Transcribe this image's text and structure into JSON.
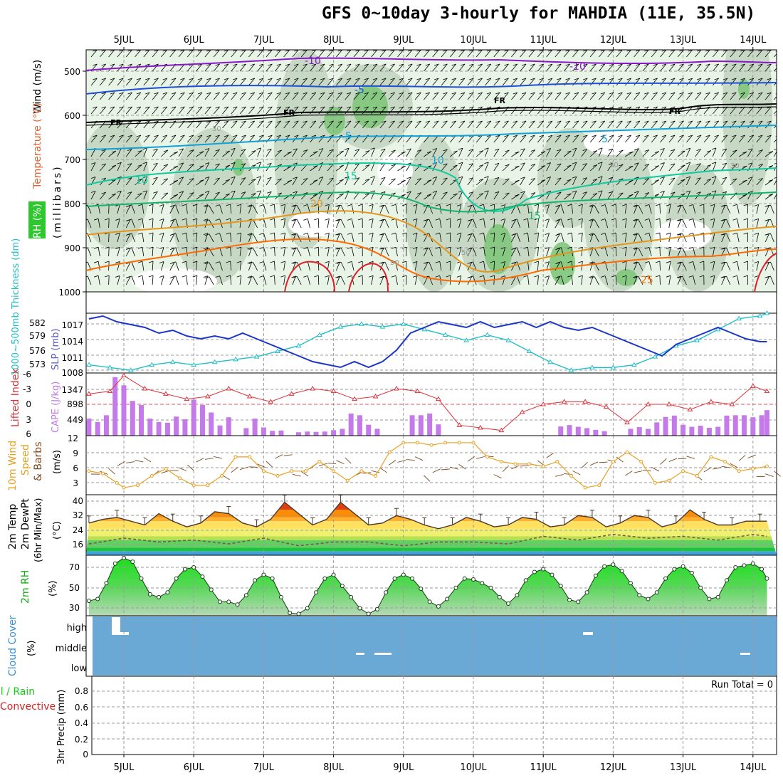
{
  "title": "GFS 0~10day 3-hourly for MAHDIA (11E, 35.5N)",
  "colors": {
    "rh_green_light": "#e8f4e6",
    "rh_green_mid": "#c3d6c1",
    "rh_green_dark": "#7fc77b",
    "temp_purple": "#8a18c8",
    "temp_blue": "#1f4fd8",
    "temp_freezing": "#000000",
    "temp_lightblue": "#12a0d8",
    "temp_teal": "#13c8a0",
    "temp_green": "#17b26a",
    "temp_orange": "#e4951b",
    "temp_darkorange": "#ff6a00",
    "temp_red": "#e0202a",
    "slp_line": "#1b36c8",
    "thickness_line": "#1fc0c8",
    "lifted_index": "#e0303a",
    "cape_bars": "#c47ae8",
    "wind_speed": "#e8a020",
    "wind_barbs": "#7a4a20",
    "rh2m_fill": "#18e018",
    "cloud_fill": "#6aa8d6",
    "precip_total": "#10d010",
    "precip_convective": "#e02020"
  },
  "x_ticks": [
    "5JUL",
    "6JUL",
    "7JUL",
    "8JUL",
    "9JUL",
    "10JUL",
    "11JUL",
    "12JUL",
    "13JUL",
    "14JUL"
  ],
  "panels": {
    "upper_air": {
      "labels": {
        "wind": "Wind (m/s)",
        "temperature": "Temperature (°C)",
        "rh": "RH (%)",
        "pressure": "(millibars)"
      },
      "y_ticks": [
        "500",
        "600",
        "700",
        "800",
        "900",
        "1000"
      ],
      "contour_labels": [
        "-10",
        "-10",
        "-5",
        "FR",
        "FR",
        "FR",
        "FR",
        "-5",
        "5",
        "10",
        "10",
        "15",
        "15",
        "20",
        "25",
        "30",
        "30",
        "30",
        "50",
        "50",
        "50"
      ]
    },
    "slp": {
      "labels": {
        "thickness": "1000~500mb Thickness (dm)",
        "slp": "SLP (mb)"
      },
      "left_ticks": [
        "582",
        "579",
        "576",
        "573"
      ],
      "right_ticks": [
        "1017",
        "1014",
        "1011",
        "1008"
      ]
    },
    "lifted": {
      "labels": {
        "lifted": "Lifted Index",
        "cape": "CAPE (J/kg)"
      },
      "left_ticks": [
        "-6",
        "-3",
        "0",
        "3",
        "6"
      ],
      "right_ticks": [
        "1347",
        "898",
        "449"
      ]
    },
    "wind10": {
      "labels": {
        "line1": "10m Wind",
        "line2": "Speed",
        "line3": "& Barbs",
        "unit": "(m/s)"
      },
      "y_ticks": [
        "12",
        "9",
        "6",
        "3"
      ]
    },
    "temp2m": {
      "labels": {
        "line1": "2m Temp",
        "line2": "2m DewPt",
        "line3": "(6hr Min/Max)",
        "unit": "(°C)"
      },
      "y_ticks": [
        "40",
        "32",
        "24",
        "16"
      ]
    },
    "rh2m": {
      "labels": {
        "name": "2m RH",
        "unit": "(%)"
      },
      "y_ticks": [
        "70",
        "50",
        "30"
      ]
    },
    "cloud": {
      "labels": {
        "name": "Cloud Cover",
        "unit": "(%)"
      },
      "levels": [
        "high",
        "middle",
        "low"
      ]
    },
    "precip": {
      "labels": {
        "total": "Total / Rain",
        "convective": "Convective",
        "axis": "3hr Precip (mm)"
      },
      "y_ticks": [
        "0.8",
        "0.6",
        "0.4",
        "0.2",
        "0"
      ],
      "run_total": "Run Total = 0"
    }
  },
  "chart_data": [
    {
      "type": "line",
      "name": "slp_thickness",
      "x_unit": "days since 5JUL 00Z",
      "slp_mb": {
        "ylim": [
          1008,
          1018.5
        ],
        "x": [
          -0.5,
          -0.3,
          -0.1,
          0.1,
          0.3,
          0.5,
          0.7,
          0.9,
          1.1,
          1.3,
          1.5,
          1.7,
          1.9,
          2.1,
          2.3,
          2.5,
          2.7,
          2.9,
          3.1,
          3.3,
          3.5,
          3.7,
          3.9,
          4.1,
          4.3,
          4.5,
          4.7,
          4.9,
          5.1,
          5.3,
          5.5,
          5.7,
          5.9,
          6.1,
          6.3,
          6.5,
          6.7,
          6.9,
          7.1,
          7.3,
          7.5,
          7.7,
          7.9,
          8.1,
          8.3,
          8.5,
          8.7,
          8.9,
          9.1,
          9.2
        ],
        "values": [
          1017.5,
          1018,
          1017,
          1016.5,
          1016,
          1015,
          1015.5,
          1014.5,
          1014,
          1014.5,
          1014,
          1015,
          1014,
          1013,
          1012,
          1011,
          1010,
          1009.5,
          1009,
          1010,
          1009,
          1010,
          1012,
          1015,
          1016,
          1017,
          1016.5,
          1016,
          1017,
          1016,
          1016.5,
          1017,
          1016,
          1017,
          1016,
          1015.5,
          1016,
          1015,
          1014,
          1013,
          1012,
          1011,
          1013,
          1014,
          1015,
          1016,
          1015,
          1014,
          1013.5,
          1013.5
        ]
      },
      "thickness_dm": {
        "ylim": [
          572,
          583
        ],
        "x": [
          -0.5,
          -0.2,
          0.1,
          0.4,
          0.7,
          1.0,
          1.3,
          1.6,
          1.9,
          2.2,
          2.5,
          2.8,
          3.1,
          3.4,
          3.7,
          4.0,
          4.3,
          4.6,
          4.9,
          5.2,
          5.5,
          5.8,
          6.1,
          6.4,
          6.7,
          7.0,
          7.3,
          7.6,
          7.9,
          8.2,
          8.5,
          8.8,
          9.1,
          9.2
        ],
        "values": [
          573.5,
          573,
          572.5,
          573.5,
          574,
          573.5,
          574,
          574.5,
          575,
          576,
          577,
          579,
          580.5,
          581,
          580.5,
          581,
          580,
          579,
          578,
          579,
          578,
          576,
          574,
          572.5,
          573,
          573,
          573.5,
          575,
          577,
          578,
          580,
          582,
          582.5,
          583
        ]
      }
    },
    {
      "type": "bar",
      "name": "cape_lifted_index",
      "x_unit": "days since 5JUL 00Z",
      "cape_jkg": {
        "ylim": [
          0,
          1800
        ],
        "x": [
          -0.5,
          -0.375,
          -0.25,
          -0.125,
          0.0,
          0.125,
          0.25,
          0.375,
          0.5,
          0.625,
          0.75,
          0.875,
          1.0,
          1.125,
          1.25,
          1.375,
          1.5,
          1.75,
          1.875,
          2.0,
          2.125,
          2.25,
          2.5,
          2.625,
          2.75,
          2.875,
          3.0,
          3.125,
          3.25,
          3.375,
          3.5,
          3.625,
          3.75,
          4.125,
          4.25,
          4.375,
          4.5,
          4.625,
          4.75,
          5.0,
          5.25,
          5.5,
          5.75,
          6.0,
          6.125,
          6.25,
          6.375,
          6.5,
          6.625,
          6.75,
          6.875,
          7.0,
          7.25,
          7.375,
          7.5,
          7.625,
          7.75,
          7.875,
          8.0,
          8.125,
          8.25,
          8.375,
          8.5,
          8.625,
          8.75,
          8.875,
          9.0,
          9.125,
          9.2
        ],
        "values": [
          500,
          400,
          600,
          1720,
          1480,
          1020,
          900,
          500,
          400,
          380,
          560,
          480,
          1060,
          900,
          680,
          300,
          540,
          220,
          500,
          240,
          140,
          150,
          100,
          120,
          110,
          120,
          160,
          200,
          650,
          600,
          320,
          200,
          0,
          600,
          600,
          650,
          330,
          0,
          0,
          0,
          0,
          0,
          0,
          0,
          0,
          270,
          310,
          260,
          220,
          170,
          130,
          0,
          200,
          250,
          200,
          390,
          550,
          590,
          320,
          260,
          290,
          230,
          260,
          590,
          600,
          600,
          540,
          600,
          750
        ]
      },
      "lifted_index": {
        "ylim": [
          6,
          -6
        ],
        "x": [
          -0.5,
          -0.2,
          0.0,
          0.3,
          0.6,
          0.9,
          1.2,
          1.5,
          1.8,
          2.1,
          2.4,
          2.7,
          3.0,
          3.3,
          3.6,
          3.9,
          4.2,
          4.5,
          4.8,
          5.1,
          5.4,
          5.7,
          6.0,
          6.3,
          6.6,
          6.9,
          7.2,
          7.5,
          7.8,
          8.1,
          8.4,
          8.7,
          9.0,
          9.2
        ],
        "values": [
          -2,
          -2.5,
          -5.5,
          -3,
          -2,
          -1,
          -1.5,
          -3,
          -1.5,
          -0.5,
          -2,
          -3,
          -2.5,
          -1,
          -1.5,
          -3,
          -2.5,
          -1,
          4,
          4.5,
          5,
          1.5,
          0,
          -0.5,
          -0.5,
          0.5,
          3.5,
          0,
          0,
          1,
          -0.5,
          0,
          -3.5,
          -2.5
        ]
      }
    },
    {
      "type": "line",
      "name": "wind10m_speed",
      "x_unit": "days since 5JUL 00Z",
      "ylim": [
        0,
        12.5
      ],
      "x": [
        -0.5,
        -0.3,
        -0.1,
        0.0,
        0.2,
        0.4,
        0.6,
        0.8,
        1.0,
        1.2,
        1.4,
        1.6,
        1.8,
        2.0,
        2.2,
        2.4,
        2.6,
        2.8,
        3.0,
        3.2,
        3.4,
        3.6,
        3.8,
        4.0,
        4.2,
        4.4,
        4.6,
        4.8,
        5.0,
        5.2,
        5.4,
        5.6,
        5.8,
        6.0,
        6.2,
        6.4,
        6.6,
        6.8,
        7.0,
        7.2,
        7.4,
        7.6,
        7.8,
        8.0,
        8.2,
        8.4,
        8.6,
        8.8,
        9.0,
        9.2
      ],
      "values": [
        5,
        4.5,
        2.5,
        1.5,
        2,
        4,
        5.5,
        3.5,
        2,
        2,
        4,
        8,
        8,
        5,
        4,
        5,
        5,
        7,
        5,
        3,
        5,
        4,
        9,
        11,
        11,
        10.5,
        11,
        11,
        11,
        8,
        7,
        6.5,
        6.5,
        6,
        7,
        4,
        1.5,
        2,
        7,
        9,
        7,
        2.5,
        3,
        5,
        4,
        8,
        7,
        5,
        5.5,
        6
      ]
    },
    {
      "type": "line",
      "name": "temp2m",
      "x_unit": "days since 5JUL 00Z",
      "ylim": [
        10,
        42
      ],
      "temperature": {
        "x": [
          -0.5,
          -0.3,
          -0.1,
          0.1,
          0.3,
          0.5,
          0.7,
          0.9,
          1.1,
          1.3,
          1.5,
          1.7,
          1.9,
          2.1,
          2.3,
          2.5,
          2.7,
          2.9,
          3.1,
          3.3,
          3.5,
          3.7,
          3.9,
          4.1,
          4.3,
          4.5,
          4.7,
          4.9,
          5.1,
          5.3,
          5.5,
          5.7,
          5.9,
          6.1,
          6.3,
          6.5,
          6.7,
          6.9,
          7.1,
          7.3,
          7.5,
          7.7,
          7.9,
          8.1,
          8.3,
          8.5,
          8.7,
          8.9,
          9.1,
          9.2
        ],
        "values": [
          27,
          29,
          30,
          28,
          26,
          32,
          28,
          25,
          27,
          33,
          32,
          27,
          25,
          29,
          38,
          32,
          26,
          29,
          38,
          32,
          26,
          27,
          31,
          29,
          26,
          24,
          26,
          30,
          28,
          25,
          26,
          30,
          29,
          25,
          26,
          31,
          30,
          25,
          27,
          31,
          30,
          25,
          27,
          34,
          29,
          26,
          26,
          28,
          28,
          28
        ]
      },
      "dewpoint": {
        "x": [
          -0.5,
          0.0,
          0.5,
          1.0,
          1.5,
          2.0,
          2.5,
          3.0,
          3.5,
          4.0,
          4.5,
          5.0,
          5.5,
          6.0,
          6.5,
          7.0,
          7.5,
          8.0,
          8.5,
          9.0,
          9.2
        ],
        "values": [
          16,
          19,
          17,
          18,
          16,
          19,
          15,
          17,
          17,
          15,
          17,
          17,
          16,
          20,
          18,
          21,
          19,
          20,
          18,
          21,
          20
        ]
      }
    },
    {
      "type": "area",
      "name": "rh2m",
      "x_unit": "days since 5JUL 00Z",
      "ylim": [
        20,
        85
      ],
      "x": [
        -0.5,
        -0.375,
        -0.25,
        -0.125,
        0.0,
        0.125,
        0.25,
        0.375,
        0.5,
        0.625,
        0.75,
        0.875,
        1.0,
        1.125,
        1.25,
        1.375,
        1.5,
        1.625,
        1.75,
        1.875,
        2.0,
        2.125,
        2.25,
        2.375,
        2.5,
        2.625,
        2.75,
        2.875,
        3.0,
        3.125,
        3.25,
        3.375,
        3.5,
        3.625,
        3.75,
        3.875,
        4.0,
        4.125,
        4.25,
        4.375,
        4.5,
        4.625,
        4.75,
        4.875,
        5.0,
        5.125,
        5.25,
        5.375,
        5.5,
        5.625,
        5.75,
        5.875,
        6.0,
        6.125,
        6.25,
        6.375,
        6.5,
        6.625,
        6.75,
        6.875,
        7.0,
        7.125,
        7.25,
        7.375,
        7.5,
        7.625,
        7.75,
        7.875,
        8.0,
        8.125,
        8.25,
        8.375,
        8.5,
        8.625,
        8.75,
        8.875,
        9.0,
        9.125,
        9.2
      ],
      "values": [
        36,
        38,
        55,
        76,
        82,
        78,
        60,
        43,
        40,
        45,
        60,
        70,
        72,
        62,
        48,
        35,
        35,
        32,
        42,
        58,
        64,
        60,
        40,
        23,
        22,
        28,
        45,
        60,
        64,
        52,
        40,
        28,
        22,
        27,
        45,
        60,
        64,
        60,
        49,
        35,
        30,
        38,
        50,
        60,
        59,
        55,
        50,
        40,
        33,
        42,
        58,
        67,
        70,
        64,
        52,
        37,
        35,
        45,
        63,
        73,
        75,
        68,
        55,
        42,
        38,
        45,
        60,
        70,
        73,
        66,
        50,
        38,
        40,
        58,
        72,
        74,
        76,
        70,
        60
      ]
    },
    {
      "type": "area",
      "name": "cloud_cover",
      "levels": [
        "high",
        "middle",
        "low"
      ],
      "fill_percent": 100
    },
    {
      "type": "bar",
      "name": "precip_3hr",
      "ylim": [
        0,
        0.9
      ],
      "values": []
    }
  ]
}
